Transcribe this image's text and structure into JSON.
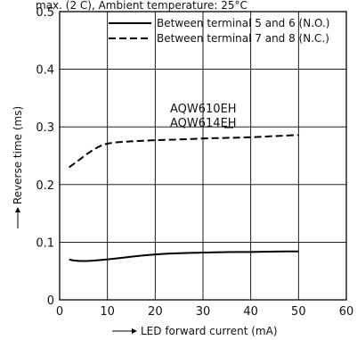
{
  "chart_data": {
    "type": "line",
    "header_text": "max. (2 C), Ambient temperature: 25°C",
    "xlabel": "LED forward current (mA)",
    "ylabel": "Reverse time (ms)",
    "xlim": [
      0,
      60
    ],
    "ylim": [
      0,
      0.5
    ],
    "x_ticks": [
      0,
      10,
      20,
      30,
      40,
      50,
      60
    ],
    "y_ticks": [
      0,
      0.1,
      0.2,
      0.3,
      0.4,
      0.5
    ],
    "y_tick_labels": [
      "0",
      "0.1",
      "0.2",
      "0.3",
      "0.4",
      "0.5"
    ],
    "grid": true,
    "legend_position": "top-right",
    "annotation_lines": [
      "AQW610EH",
      "AQW614EH"
    ],
    "series": [
      {
        "name": "Between terminal 5 and 6 (N.O.)",
        "style": "solid",
        "color": "#000000",
        "x": [
          2,
          3,
          5,
          7,
          10,
          15,
          20,
          25,
          30,
          35,
          40,
          45,
          50
        ],
        "y": [
          0.07,
          0.068,
          0.067,
          0.068,
          0.07,
          0.075,
          0.079,
          0.081,
          0.082,
          0.083,
          0.083,
          0.084,
          0.084
        ]
      },
      {
        "name": "Between terminal 7 and 8 (N.C.)",
        "style": "dashed",
        "color": "#000000",
        "x": [
          2,
          4,
          6,
          8,
          10,
          15,
          20,
          25,
          30,
          35,
          40,
          45,
          50
        ],
        "y": [
          0.23,
          0.242,
          0.255,
          0.265,
          0.272,
          0.275,
          0.277,
          0.278,
          0.28,
          0.281,
          0.282,
          0.284,
          0.286
        ]
      }
    ]
  }
}
